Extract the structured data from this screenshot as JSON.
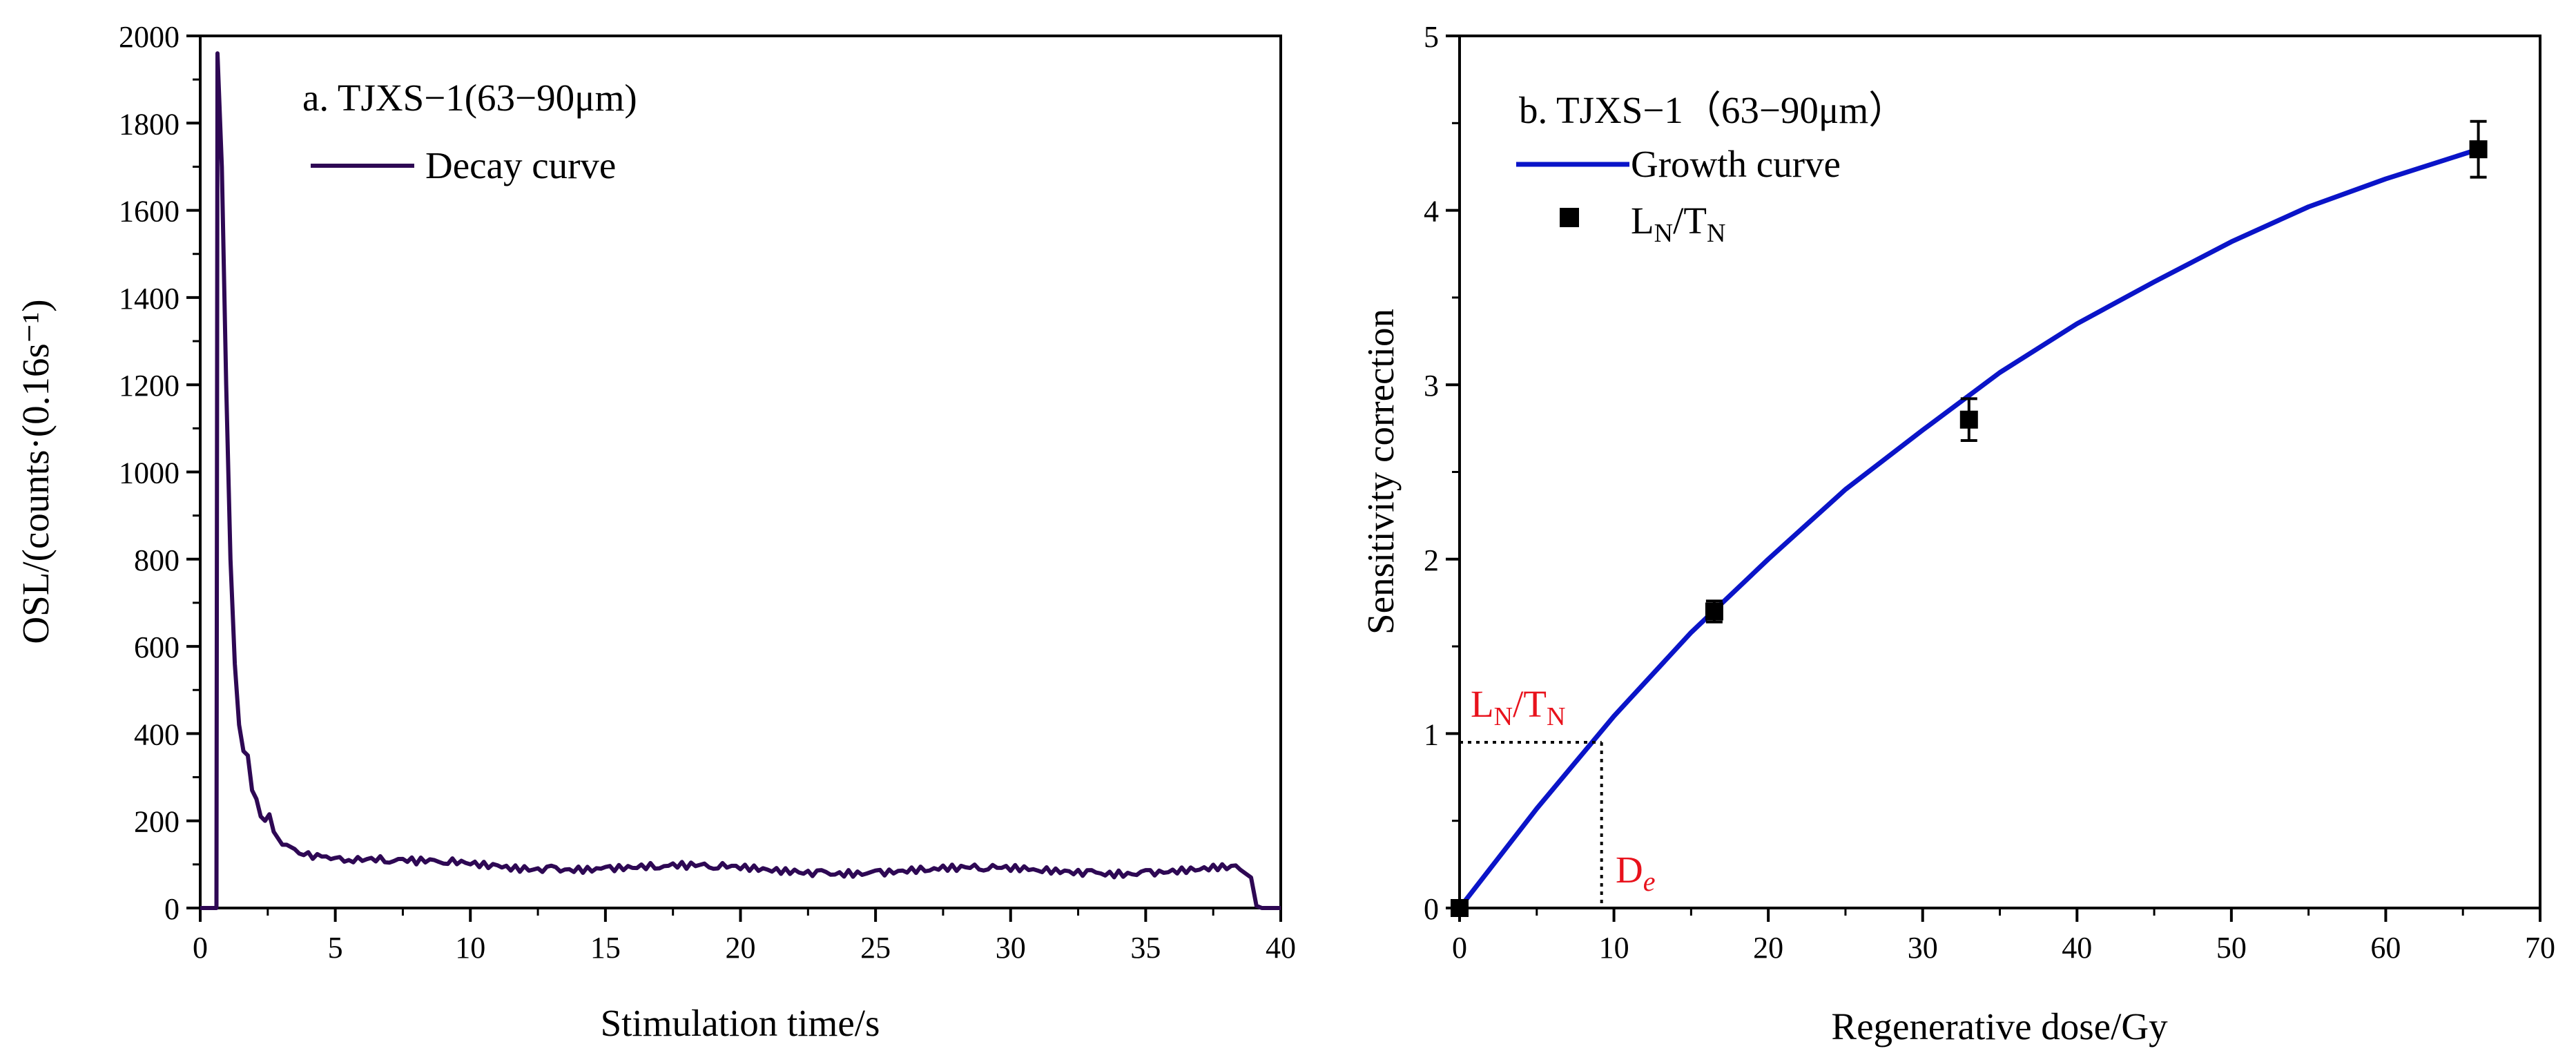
{
  "colors": {
    "decay": "#2e0854",
    "growth": "#0a14c8",
    "marker": "#000000",
    "annotation": "#e8121c"
  },
  "chart_data": [
    {
      "type": "line",
      "title": "a. TJXS−1(63−90μm)",
      "xlabel": "Stimulation time/s",
      "ylabel": "OSL/(counts·(0.16s⁻¹)",
      "xlim": [
        0,
        40
      ],
      "ylim": [
        0,
        2000
      ],
      "xticks": [
        "0",
        "5",
        "10",
        "15",
        "20",
        "25",
        "30",
        "35",
        "40"
      ],
      "yticks": [
        "0",
        "200",
        "400",
        "600",
        "800",
        "1000",
        "1200",
        "1400",
        "1600",
        "1800",
        "2000"
      ],
      "legend": "top-left",
      "series": [
        {
          "name": "Decay curve",
          "x": [
            0,
            0.6,
            0.64,
            0.8,
            0.96,
            1.12,
            1.28,
            1.44,
            1.6,
            1.76,
            1.92,
            2.08,
            2.24,
            2.4,
            2.56,
            2.72,
            2.88,
            3.04,
            3.2,
            3.5,
            4,
            4.5,
            5,
            5.5,
            6,
            7,
            8,
            9,
            10,
            11,
            12,
            13,
            14,
            15,
            16,
            17,
            18,
            19,
            20,
            21,
            22,
            23,
            24,
            25,
            26,
            27,
            28,
            29,
            30,
            31,
            32,
            33,
            34,
            35,
            36,
            37,
            38,
            38.5,
            38.9,
            39.1,
            39.3,
            40
          ],
          "values": [
            0,
            0,
            1960,
            1700,
            1200,
            800,
            560,
            420,
            360,
            350,
            270,
            250,
            210,
            200,
            215,
            175,
            160,
            145,
            145,
            135,
            128,
            118,
            115,
            110,
            108,
            104,
            100,
            102,
            100,
            98,
            96,
            97,
            95,
            94,
            92,
            91,
            90,
            90,
            89,
            88,
            88,
            87,
            87,
            86,
            86,
            86,
            85,
            86,
            85,
            86,
            86,
            87,
            86,
            87,
            88,
            88,
            89,
            88,
            70,
            5,
            0,
            0
          ]
        }
      ]
    },
    {
      "type": "line",
      "title": "b. TJXS−1（63−90μm）",
      "xlabel": "Regenerative dose/Gy",
      "ylabel": "Sensitivity correction",
      "xlim": [
        0,
        70
      ],
      "ylim": [
        0,
        5
      ],
      "xticks": [
        "0",
        "10",
        "20",
        "30",
        "40",
        "50",
        "60",
        "70"
      ],
      "yticks": [
        "0",
        "1",
        "2",
        "3",
        "4",
        "5"
      ],
      "legend": "top-left",
      "series": [
        {
          "name": "Growth curve",
          "x": [
            0,
            5,
            10,
            15,
            20,
            25,
            30,
            35,
            40,
            45,
            50,
            55,
            60,
            66
          ],
          "values": [
            0,
            0.57,
            1.1,
            1.58,
            2.0,
            2.4,
            2.74,
            3.07,
            3.35,
            3.59,
            3.82,
            4.02,
            4.18,
            4.35
          ]
        },
        {
          "name": "L_N/T_N",
          "type": "scatter",
          "x": [
            0,
            16.5,
            33,
            66
          ],
          "values": [
            0,
            1.7,
            2.8,
            4.35
          ],
          "errors": [
            0,
            0.06,
            0.12,
            0.16
          ]
        }
      ],
      "annotations": {
        "ln_tn_value": 0.95,
        "de_value": 9.2,
        "ln_label": "L",
        "ln_sub": "N",
        "tn_label": "/T",
        "tn_sub": "N",
        "de_label": "D",
        "de_sub": "e"
      }
    }
  ],
  "legend_b_marker": {
    "main": "L",
    "sub1": "N",
    "slash": "/T",
    "sub2": "N"
  }
}
